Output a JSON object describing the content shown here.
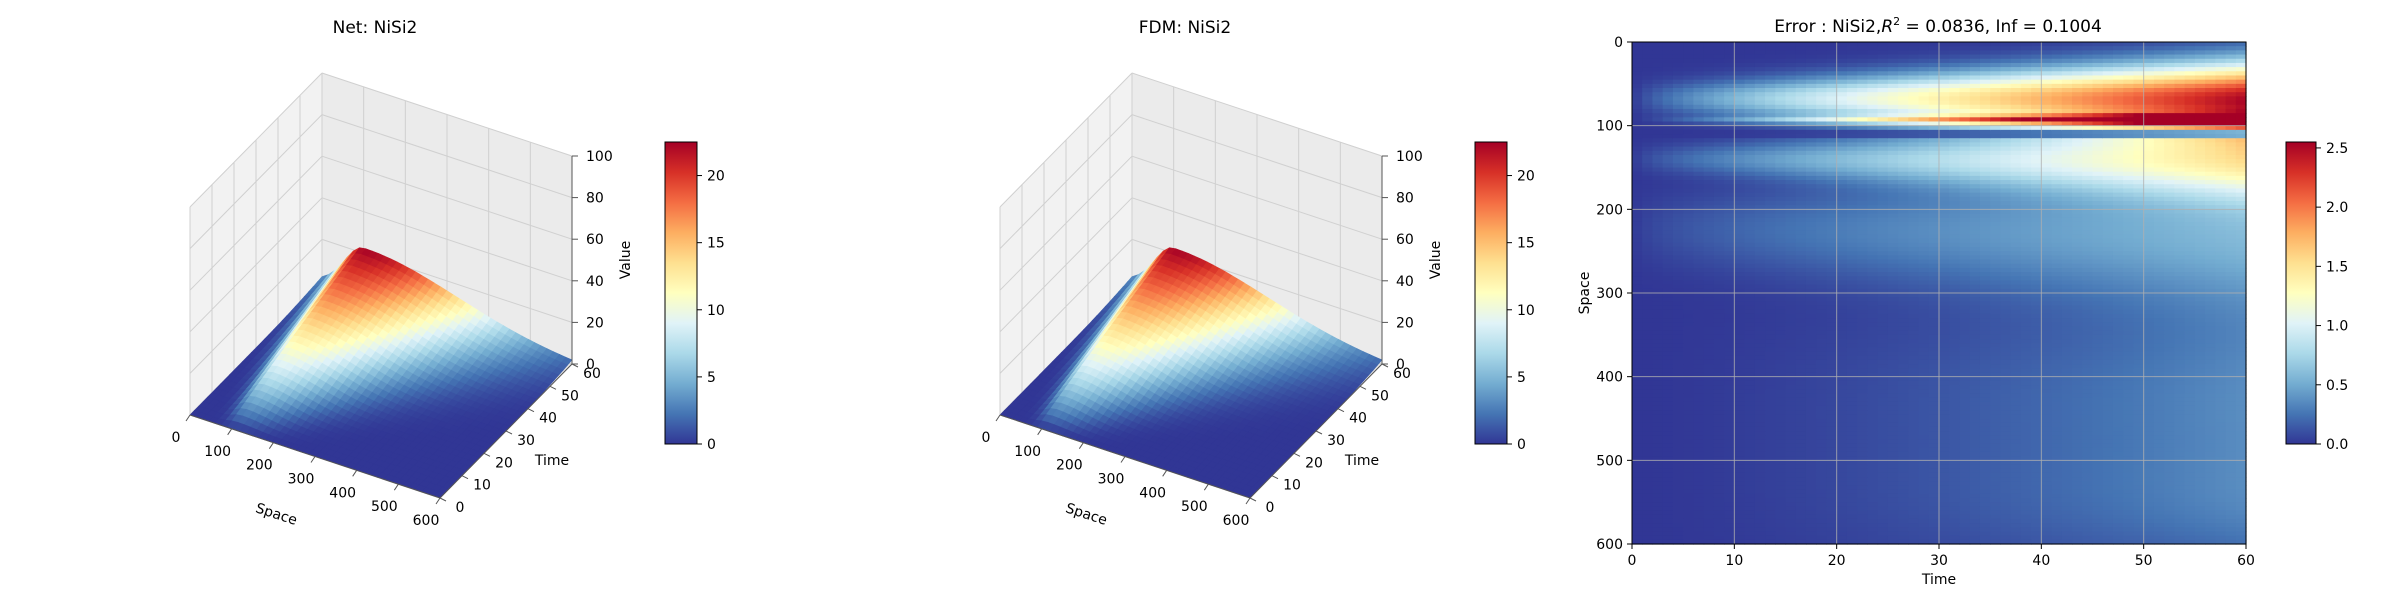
{
  "chart_data": [
    {
      "type": "surface",
      "title": "Net: NiSi2",
      "xlabel": "Space",
      "ylabel": "Time",
      "zlabel": "Value",
      "x_ticks": [
        "0",
        "100",
        "200",
        "300",
        "400",
        "500",
        "600"
      ],
      "y_ticks": [
        "0",
        "10",
        "20",
        "30",
        "40",
        "50",
        "60"
      ],
      "z_ticks": [
        "0",
        "20",
        "40",
        "60",
        "80",
        "100"
      ],
      "xlim": [
        0,
        600
      ],
      "ylim": [
        0,
        60
      ],
      "zlim": [
        0,
        100
      ],
      "peak_value": 22.5,
      "peak_space": 100,
      "peak_time": 60,
      "colorbar": {
        "label": "Value",
        "ticks": [
          "0",
          "5",
          "10",
          "15",
          "20"
        ],
        "range": [
          0,
          22.5
        ],
        "colormap": "RdYlBu_r"
      }
    },
    {
      "type": "surface",
      "title": "FDM: NiSi2",
      "xlabel": "Space",
      "ylabel": "Time",
      "zlabel": "Value",
      "x_ticks": [
        "0",
        "100",
        "200",
        "300",
        "400",
        "500",
        "600"
      ],
      "y_ticks": [
        "0",
        "10",
        "20",
        "30",
        "40",
        "50",
        "60"
      ],
      "z_ticks": [
        "0",
        "20",
        "40",
        "60",
        "80",
        "100"
      ],
      "xlim": [
        0,
        600
      ],
      "ylim": [
        0,
        60
      ],
      "zlim": [
        0,
        100
      ],
      "peak_value": 22.5,
      "peak_space": 100,
      "peak_time": 60,
      "colorbar": {
        "label": "Value",
        "ticks": [
          "0",
          "5",
          "10",
          "15",
          "20"
        ],
        "range": [
          0,
          22.5
        ],
        "colormap": "RdYlBu_r"
      }
    },
    {
      "type": "heatmap",
      "title_prefix": "Error : NiSi2,",
      "title_r": "R",
      "title_sup": "2",
      "title_suffix": " = 0.0836, Inf = 0.1004",
      "xlabel": "Time",
      "ylabel": "Space",
      "x_ticks": [
        "0",
        "10",
        "20",
        "30",
        "40",
        "50",
        "60"
      ],
      "y_ticks": [
        "0",
        "100",
        "200",
        "300",
        "400",
        "500",
        "600"
      ],
      "xlim": [
        0,
        60
      ],
      "ylim": [
        0,
        600
      ],
      "grid": true,
      "colorbar": {
        "ticks": [
          "0.0",
          "0.5",
          "1.0",
          "1.5",
          "2.0",
          "2.5"
        ],
        "range": [
          0,
          2.55
        ],
        "colormap": "RdYlBu_r"
      }
    }
  ],
  "colors": {
    "colormap_stops": [
      "#313695",
      "#4575b4",
      "#74add1",
      "#abd9e9",
      "#e0f3f8",
      "#ffffbf",
      "#fee090",
      "#fdae61",
      "#f46d43",
      "#d73027",
      "#a50026"
    ],
    "pane": "#f2f2f2",
    "grid": "#d0d0d0"
  }
}
